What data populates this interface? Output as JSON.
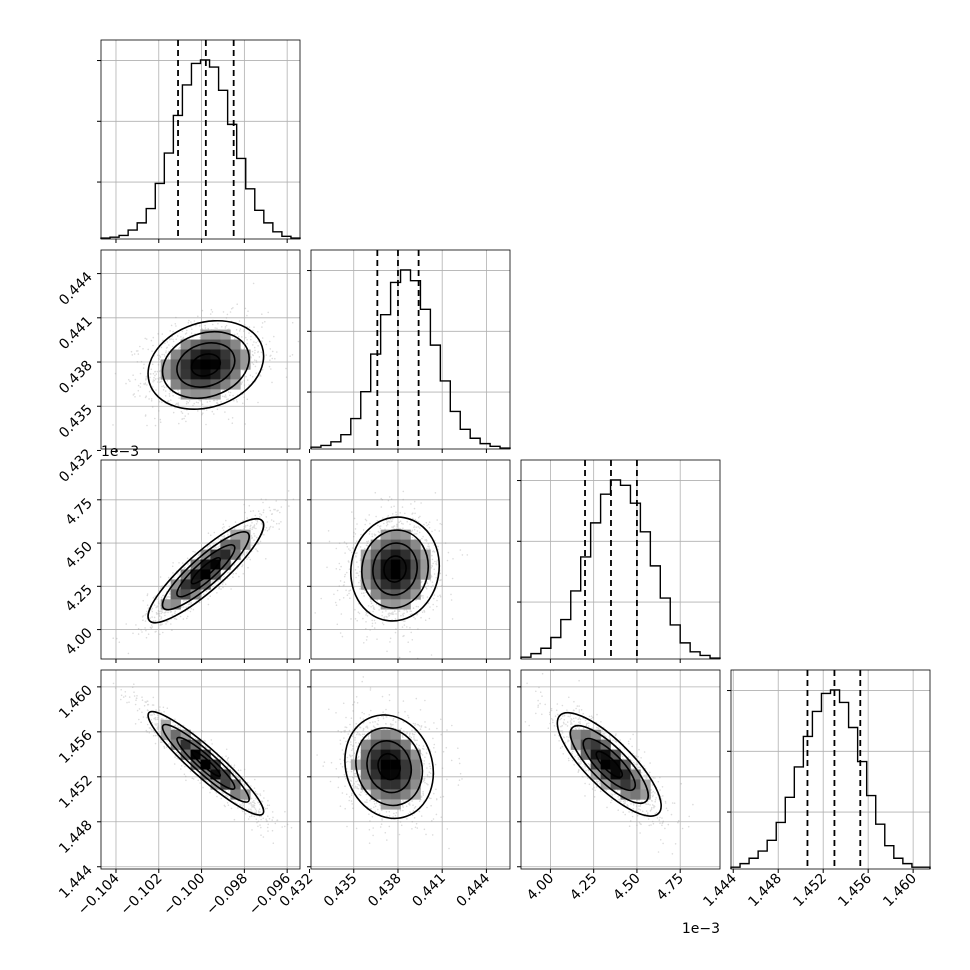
{
  "chart_data": {
    "type": "corner",
    "grid": true,
    "parameters": [
      {
        "xticks": [
          "−0.104",
          "−0.102",
          "−0.100",
          "−0.098",
          "−0.096"
        ],
        "xtick_values": [
          -0.104,
          -0.102,
          -0.1,
          -0.098,
          -0.096
        ],
        "yticks": [],
        "yticks_values": [],
        "range": [
          -0.1047,
          -0.0954
        ],
        "quantiles": [
          -0.1011,
          -0.0998,
          -0.0985
        ],
        "offset_label": ""
      },
      {
        "xticks": [
          "0.432",
          "0.435",
          "0.438",
          "0.441",
          "0.444"
        ],
        "xtick_values": [
          0.432,
          0.435,
          0.438,
          0.441,
          0.444
        ],
        "yticks": [
          "0.432",
          "0.435",
          "0.438",
          "0.441",
          "0.444"
        ],
        "ytick_values": [
          0.432,
          0.435,
          0.438,
          0.441,
          0.444
        ],
        "range": [
          0.4321,
          0.4456
        ],
        "quantiles": [
          0.4366,
          0.438,
          0.4394
        ],
        "offset_label": ""
      },
      {
        "xticks": [
          "4.00",
          "4.25",
          "4.50",
          "4.75"
        ],
        "xtick_values": [
          4.0,
          4.25,
          4.5,
          4.75
        ],
        "yticks": [
          "4.00",
          "4.25",
          "4.50",
          "4.75"
        ],
        "ytick_values": [
          4.0,
          4.25,
          4.5,
          4.75
        ],
        "range": [
          3.83,
          4.98
        ],
        "quantiles": [
          4.2,
          4.35,
          4.5
        ],
        "offset_label": "1e−3"
      },
      {
        "xticks": [
          "1.444",
          "1.448",
          "1.452",
          "1.456",
          "1.460"
        ],
        "xtick_values": [
          1.444,
          1.448,
          1.452,
          1.456,
          1.46
        ],
        "yticks": [
          "1.444",
          "1.448",
          "1.452",
          "1.456",
          "1.460"
        ],
        "ytick_values": [
          1.444,
          1.448,
          1.452,
          1.456,
          1.46
        ],
        "range": [
          1.4438,
          1.4615
        ],
        "quantiles": [
          1.4506,
          1.453,
          1.4553
        ],
        "offset_label": ""
      }
    ],
    "histograms": [
      [
        0.005,
        0.01,
        0.02,
        0.05,
        0.09,
        0.17,
        0.31,
        0.48,
        0.69,
        0.86,
        0.98,
        1.0,
        0.96,
        0.83,
        0.64,
        0.45,
        0.28,
        0.16,
        0.09,
        0.04,
        0.015,
        0.005
      ],
      [
        0.01,
        0.02,
        0.04,
        0.08,
        0.17,
        0.32,
        0.53,
        0.75,
        0.93,
        1.0,
        0.94,
        0.78,
        0.58,
        0.38,
        0.21,
        0.11,
        0.06,
        0.03,
        0.015,
        0.005
      ],
      [
        0.01,
        0.03,
        0.06,
        0.12,
        0.22,
        0.38,
        0.57,
        0.76,
        0.92,
        1.0,
        0.97,
        0.87,
        0.71,
        0.52,
        0.34,
        0.19,
        0.09,
        0.04,
        0.02,
        0.005
      ],
      [
        0.01,
        0.03,
        0.06,
        0.1,
        0.16,
        0.26,
        0.4,
        0.57,
        0.74,
        0.88,
        0.98,
        1.0,
        0.93,
        0.79,
        0.6,
        0.41,
        0.25,
        0.13,
        0.06,
        0.03,
        0.01,
        0.01
      ]
    ],
    "pairs": [
      {
        "row": 1,
        "col": 0,
        "center": [
          -0.0998,
          0.4378
        ],
        "sigma": [
          0.00135,
          0.0015
        ],
        "rho": 0.2
      },
      {
        "row": 2,
        "col": 0,
        "center": [
          -0.0998,
          4.34
        ],
        "sigma": [
          0.00135,
          0.15
        ],
        "rho": 0.88
      },
      {
        "row": 2,
        "col": 1,
        "center": [
          0.4378,
          4.35
        ],
        "sigma": [
          0.0015,
          0.15
        ],
        "rho": 0.06
      },
      {
        "row": 3,
        "col": 0,
        "center": [
          -0.0998,
          1.4532
        ],
        "sigma": [
          0.00135,
          0.0023
        ],
        "rho": -0.93
      },
      {
        "row": 3,
        "col": 1,
        "center": [
          0.4374,
          1.4529
        ],
        "sigma": [
          0.0015,
          0.0023
        ],
        "rho": -0.12
      },
      {
        "row": 3,
        "col": 2,
        "center": [
          4.34,
          1.4531
        ],
        "sigma": [
          0.15,
          0.0023
        ],
        "rho": -0.8
      }
    ],
    "contour_levels_sigma": [
      0.5,
      1.0,
      1.5,
      2.0
    ],
    "colors": {
      "line": "#000000",
      "grid": "#b0b0b0",
      "points": "#9a9a9a"
    }
  }
}
